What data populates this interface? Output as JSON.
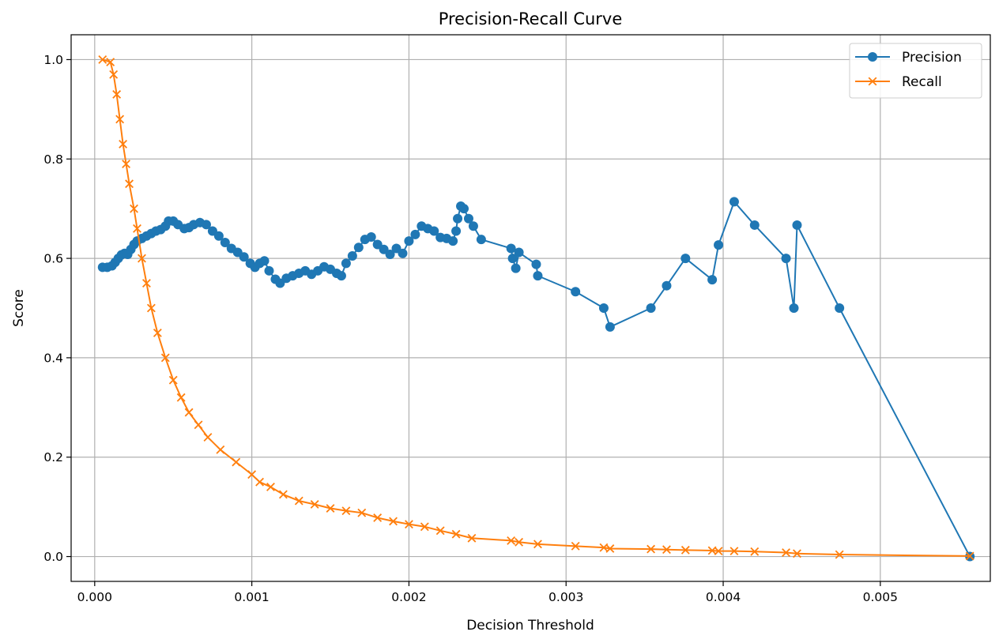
{
  "chart_data": {
    "type": "line",
    "title": "Precision-Recall Curve",
    "xlabel": "Decision Threshold",
    "ylabel": "Score",
    "xlim": [
      -0.00015,
      0.0057
    ],
    "ylim": [
      -0.05,
      1.05
    ],
    "xticks": [
      0.0,
      0.001,
      0.002,
      0.003,
      0.004,
      0.005
    ],
    "xtick_labels": [
      "0.000",
      "0.001",
      "0.002",
      "0.003",
      "0.004",
      "0.005"
    ],
    "yticks": [
      0.0,
      0.2,
      0.4,
      0.6,
      0.8,
      1.0
    ],
    "ytick_labels": [
      "0.0",
      "0.2",
      "0.4",
      "0.6",
      "0.8",
      "1.0"
    ],
    "grid": true,
    "legend_position": "top-right",
    "series": [
      {
        "name": "Precision",
        "color": "#1f77b4",
        "marker": "circle",
        "points": [
          [
            5e-05,
            0.582
          ],
          [
            8e-05,
            0.582
          ],
          [
            0.00011,
            0.585
          ],
          [
            0.00013,
            0.592
          ],
          [
            0.00015,
            0.6
          ],
          [
            0.00017,
            0.607
          ],
          [
            0.00019,
            0.61
          ],
          [
            0.00021,
            0.608
          ],
          [
            0.00023,
            0.618
          ],
          [
            0.00025,
            0.628
          ],
          [
            0.00027,
            0.635
          ],
          [
            0.0003,
            0.64
          ],
          [
            0.00033,
            0.645
          ],
          [
            0.00036,
            0.65
          ],
          [
            0.00039,
            0.655
          ],
          [
            0.00042,
            0.658
          ],
          [
            0.00045,
            0.665
          ],
          [
            0.00047,
            0.675
          ],
          [
            0.0005,
            0.675
          ],
          [
            0.00053,
            0.668
          ],
          [
            0.00057,
            0.66
          ],
          [
            0.0006,
            0.662
          ],
          [
            0.00063,
            0.668
          ],
          [
            0.00067,
            0.672
          ],
          [
            0.00071,
            0.668
          ],
          [
            0.00075,
            0.655
          ],
          [
            0.00079,
            0.645
          ],
          [
            0.00083,
            0.632
          ],
          [
            0.00087,
            0.62
          ],
          [
            0.00091,
            0.612
          ],
          [
            0.00095,
            0.603
          ],
          [
            0.00099,
            0.59
          ],
          [
            0.00102,
            0.582
          ],
          [
            0.00105,
            0.59
          ],
          [
            0.00108,
            0.595
          ],
          [
            0.00111,
            0.575
          ],
          [
            0.00115,
            0.558
          ],
          [
            0.00118,
            0.55
          ],
          [
            0.00122,
            0.56
          ],
          [
            0.00126,
            0.565
          ],
          [
            0.0013,
            0.57
          ],
          [
            0.00134,
            0.575
          ],
          [
            0.00138,
            0.568
          ],
          [
            0.00142,
            0.575
          ],
          [
            0.00146,
            0.583
          ],
          [
            0.0015,
            0.578
          ],
          [
            0.00154,
            0.57
          ],
          [
            0.00157,
            0.565
          ],
          [
            0.0016,
            0.59
          ],
          [
            0.00164,
            0.605
          ],
          [
            0.00168,
            0.622
          ],
          [
            0.00172,
            0.638
          ],
          [
            0.00176,
            0.643
          ],
          [
            0.0018,
            0.628
          ],
          [
            0.00184,
            0.618
          ],
          [
            0.00188,
            0.608
          ],
          [
            0.00192,
            0.62
          ],
          [
            0.00196,
            0.61
          ],
          [
            0.002,
            0.635
          ],
          [
            0.00204,
            0.648
          ],
          [
            0.00208,
            0.665
          ],
          [
            0.00212,
            0.66
          ],
          [
            0.00216,
            0.655
          ],
          [
            0.0022,
            0.642
          ],
          [
            0.00224,
            0.64
          ],
          [
            0.00228,
            0.635
          ],
          [
            0.0023,
            0.655
          ],
          [
            0.00231,
            0.68
          ],
          [
            0.00233,
            0.705
          ],
          [
            0.00235,
            0.7
          ],
          [
            0.00238,
            0.68
          ],
          [
            0.00241,
            0.665
          ],
          [
            0.00246,
            0.638
          ],
          [
            0.00265,
            0.62
          ],
          [
            0.00266,
            0.6
          ],
          [
            0.00268,
            0.58
          ],
          [
            0.0027,
            0.612
          ],
          [
            0.00281,
            0.588
          ],
          [
            0.00282,
            0.565
          ],
          [
            0.00306,
            0.533
          ],
          [
            0.00324,
            0.5
          ],
          [
            0.00328,
            0.462
          ],
          [
            0.00354,
            0.5
          ],
          [
            0.00364,
            0.545
          ],
          [
            0.00376,
            0.6
          ],
          [
            0.00393,
            0.557
          ],
          [
            0.00397,
            0.627
          ],
          [
            0.00407,
            0.714
          ],
          [
            0.0042,
            0.667
          ],
          [
            0.0044,
            0.6
          ],
          [
            0.00445,
            0.5
          ],
          [
            0.00447,
            0.667
          ],
          [
            0.00474,
            0.5
          ],
          [
            0.00557,
            0.0
          ]
        ]
      },
      {
        "name": "Recall",
        "color": "#ff7f0e",
        "marker": "x",
        "points": [
          [
            5e-05,
            1.0
          ],
          [
            0.0001,
            0.995
          ],
          [
            0.00012,
            0.97
          ],
          [
            0.00014,
            0.93
          ],
          [
            0.00016,
            0.88
          ],
          [
            0.00018,
            0.83
          ],
          [
            0.0002,
            0.79
          ],
          [
            0.00022,
            0.75
          ],
          [
            0.00025,
            0.7
          ],
          [
            0.00027,
            0.66
          ],
          [
            0.0003,
            0.6
          ],
          [
            0.00033,
            0.55
          ],
          [
            0.00036,
            0.5
          ],
          [
            0.0004,
            0.45
          ],
          [
            0.00045,
            0.4
          ],
          [
            0.0005,
            0.355
          ],
          [
            0.00055,
            0.32
          ],
          [
            0.0006,
            0.29
          ],
          [
            0.00066,
            0.265
          ],
          [
            0.00072,
            0.24
          ],
          [
            0.0008,
            0.215
          ],
          [
            0.0009,
            0.19
          ],
          [
            0.001,
            0.165
          ],
          [
            0.00105,
            0.15
          ],
          [
            0.00112,
            0.14
          ],
          [
            0.0012,
            0.125
          ],
          [
            0.0013,
            0.112
          ],
          [
            0.0014,
            0.105
          ],
          [
            0.0015,
            0.097
          ],
          [
            0.0016,
            0.092
          ],
          [
            0.0017,
            0.088
          ],
          [
            0.0018,
            0.078
          ],
          [
            0.0019,
            0.071
          ],
          [
            0.002,
            0.065
          ],
          [
            0.0021,
            0.06
          ],
          [
            0.0022,
            0.052
          ],
          [
            0.0023,
            0.045
          ],
          [
            0.0024,
            0.037
          ],
          [
            0.00265,
            0.032
          ],
          [
            0.0027,
            0.029
          ],
          [
            0.00282,
            0.025
          ],
          [
            0.00306,
            0.021
          ],
          [
            0.00324,
            0.018
          ],
          [
            0.00328,
            0.016
          ],
          [
            0.00354,
            0.015
          ],
          [
            0.00364,
            0.014
          ],
          [
            0.00376,
            0.013
          ],
          [
            0.00393,
            0.012
          ],
          [
            0.00397,
            0.011
          ],
          [
            0.00407,
            0.011
          ],
          [
            0.0042,
            0.01
          ],
          [
            0.0044,
            0.008
          ],
          [
            0.00447,
            0.006
          ],
          [
            0.00474,
            0.004
          ],
          [
            0.00557,
            0.001
          ]
        ]
      }
    ]
  }
}
